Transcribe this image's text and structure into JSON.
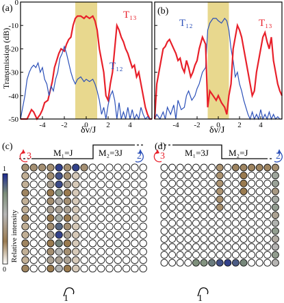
{
  "figure": {
    "panel_labels": [
      "(a)",
      "(b)",
      "(c)",
      "(d)"
    ],
    "colors": {
      "t13": "#e8202a",
      "t12": "#2a4fb8",
      "band": "#e8d88e",
      "grid_line": "#7f7f7f"
    },
    "colorbar": {
      "label": "Relative intensity",
      "max_label": "1",
      "min_label": "0",
      "colors": [
        "#ffffff",
        "#9a7b50",
        "#b7b7b7",
        "#7e8f7a",
        "#1c2a8f"
      ]
    },
    "lattice": {
      "c": {
        "left_port": "3",
        "right_port": "2",
        "bottom_port": "1",
        "m1": "M₁=J",
        "m2": "M₂=3J"
      },
      "d": {
        "left_port": "3",
        "right_port": "2",
        "bottom_port": "1",
        "m1": "M₁=3J",
        "m2": "M₂=J"
      }
    }
  },
  "chart_data": [
    {
      "type": "line",
      "panel": "(a)",
      "xlabel": "δν/J",
      "ylabel": "Transmission (dB)",
      "xlim": [
        -6,
        6
      ],
      "ylim": [
        -50,
        0
      ],
      "xticks": [
        "-4",
        "-2",
        "0",
        "2",
        "4"
      ],
      "yticks": [
        "0",
        "-10",
        "-20",
        "-30",
        "-40",
        "-50"
      ],
      "band": [
        -1,
        1
      ],
      "series": [
        {
          "name": "T₁₃",
          "color": "#e8202a",
          "x": [
            -6,
            -5.4,
            -5.2,
            -5,
            -4.8,
            -4.5,
            -4.2,
            -4,
            -3.8,
            -3.5,
            -3.3,
            -3.1,
            -2.9,
            -2.7,
            -2.5,
            -2.3,
            -2,
            -1.8,
            -1.6,
            -1.4,
            -1.2,
            -1,
            -0.8,
            -0.5,
            -0.2,
            0,
            0.3,
            0.6,
            0.8,
            1,
            1.2,
            1.4,
            1.6,
            1.8,
            2,
            2.2,
            2.4,
            2.6,
            2.8,
            3,
            3.2,
            3.4,
            3.6,
            3.8,
            4,
            4.2,
            4.4,
            4.6,
            4.8,
            5,
            5.2,
            5.4,
            5.6,
            5.8,
            6
          ],
          "y": [
            -50,
            -50,
            -48,
            -46,
            -47,
            -50,
            -48,
            -46,
            -43,
            -42,
            -38,
            -34,
            -28,
            -25,
            -22,
            -20,
            -21,
            -18,
            -16,
            -15,
            -10,
            -7,
            -6,
            -6,
            -7,
            -6,
            -7,
            -6,
            -8,
            -12,
            -20,
            -25,
            -30,
            -40,
            -42,
            -35,
            -30,
            -20,
            -10,
            -12,
            -15,
            -17,
            -20,
            -22,
            -25,
            -28,
            -27,
            -32,
            -30,
            -35,
            -40,
            -45,
            -48,
            -50,
            -50
          ]
        },
        {
          "name": "T₁₂",
          "color": "#2a4fb8",
          "x": [
            -6,
            -5.8,
            -5.6,
            -5.4,
            -5.2,
            -5,
            -4.8,
            -4.6,
            -4.4,
            -4.2,
            -4,
            -3.8,
            -3.6,
            -3.4,
            -3.2,
            -3,
            -2.8,
            -2.6,
            -2.4,
            -2.2,
            -2,
            -1.8,
            -1.6,
            -1.4,
            -1.2,
            -1,
            -0.8,
            -0.5,
            -0.2,
            0,
            0.3,
            0.6,
            0.8,
            1,
            1.2,
            1.4,
            1.6,
            1.8,
            2,
            2.2,
            2.4,
            2.6,
            2.8,
            3,
            3.2,
            3.4,
            3.6,
            3.8,
            4,
            4.2,
            4.4,
            4.6,
            4.8,
            5,
            5.2,
            5.4,
            5.6,
            5.8,
            6
          ],
          "y": [
            -50,
            -45,
            -40,
            -33,
            -30,
            -28,
            -27,
            -28,
            -26,
            -30,
            -28,
            -33,
            -35,
            -40,
            -36,
            -38,
            -33,
            -30,
            -24,
            -22,
            -19,
            -22,
            -26,
            -30,
            -33,
            -35,
            -33,
            -32,
            -34,
            -33,
            -34,
            -33,
            -35,
            -38,
            -42,
            -48,
            -45,
            -50,
            -44,
            -40,
            -38,
            -42,
            -50,
            -43,
            -50,
            -47,
            -50,
            -45,
            -50,
            -46,
            -50,
            -48,
            -50,
            -45,
            -48,
            -50,
            -49,
            -50,
            -50
          ]
        }
      ]
    },
    {
      "type": "line",
      "panel": "(b)",
      "xlabel": "δν/J",
      "xlim": [
        -6,
        6
      ],
      "ylim": [
        -50,
        0
      ],
      "xticks": [
        "-4",
        "-2",
        "0",
        "2",
        "4"
      ],
      "band": [
        -1,
        1
      ],
      "series": [
        {
          "name": "T₁₂",
          "color": "#2a4fb8",
          "x": [
            -6,
            -5.8,
            -5.5,
            -5.2,
            -5,
            -4.8,
            -4.5,
            -4.2,
            -4,
            -3.8,
            -3.5,
            -3.2,
            -3,
            -2.8,
            -2.5,
            -2.2,
            -2,
            -1.8,
            -1.5,
            -1.2,
            -1,
            -0.8,
            -0.5,
            -0.2,
            0,
            0.3,
            0.6,
            0.8,
            1,
            1.2,
            1.4,
            1.6,
            1.8,
            2,
            2.2,
            2.4,
            2.6,
            2.8,
            3,
            3.2,
            3.4,
            3.6,
            3.8,
            4,
            4.2,
            4.4,
            4.6,
            4.8,
            5,
            5.2,
            5.4,
            5.6,
            5.8,
            6
          ],
          "y": [
            -50,
            -48,
            -50,
            -47,
            -50,
            -45,
            -48,
            -44,
            -50,
            -42,
            -46,
            -45,
            -40,
            -38,
            -42,
            -40,
            -37,
            -35,
            -30,
            -28,
            -12,
            -9,
            -7,
            -7,
            -8,
            -9,
            -7,
            -8,
            -12,
            -20,
            -25,
            -32,
            -30,
            -35,
            -38,
            -42,
            -45,
            -48,
            -50,
            -47,
            -50,
            -48,
            -50,
            -46,
            -50,
            -48,
            -50,
            -47,
            -50,
            -48,
            -50,
            -49,
            -50,
            -50
          ]
        },
        {
          "name": "T₁₃",
          "color": "#e8202a",
          "x": [
            -6,
            -5.8,
            -5.6,
            -5.4,
            -5.2,
            -5,
            -4.8,
            -4.6,
            -4.4,
            -4.2,
            -4,
            -3.8,
            -3.6,
            -3.4,
            -3.2,
            -3,
            -2.8,
            -2.6,
            -2.4,
            -2.2,
            -2,
            -1.8,
            -1.5,
            -1.2,
            -1,
            -0.8,
            -0.5,
            -0.2,
            0,
            0.3,
            0.6,
            0.8,
            1,
            1.2,
            1.4,
            1.6,
            1.8,
            2,
            2.2,
            2.4,
            2.6,
            2.8,
            3,
            3.2,
            3.4,
            3.6,
            3.8,
            4,
            4.2,
            4.4,
            4.6,
            4.8,
            5,
            5.2,
            5.4,
            5.6,
            5.8,
            6
          ],
          "y": [
            -50,
            -35,
            -30,
            -25,
            -20,
            -19,
            -17,
            -16,
            -18,
            -20,
            -22,
            -25,
            -24,
            -28,
            -30,
            -25,
            -28,
            -32,
            -30,
            -27,
            -25,
            -20,
            -15,
            -18,
            -45,
            -38,
            -40,
            -42,
            -40,
            -43,
            -45,
            -48,
            -40,
            -35,
            -20,
            -15,
            -10,
            -12,
            -15,
            -20,
            -25,
            -30,
            -35,
            -40,
            -38,
            -30,
            -25,
            -20,
            -15,
            -13,
            -17,
            -20,
            -15,
            -25,
            -30,
            -35,
            -38,
            -40
          ]
        }
      ]
    },
    {
      "type": "heatmap",
      "panel": "(c)",
      "rows": 13,
      "cols": 16,
      "description": "Grid of resonators colored by relative intensity (0-1)."
    },
    {
      "type": "heatmap",
      "panel": "(d)",
      "rows": 13,
      "cols": 15,
      "description": "Grid of resonators colored by relative intensity (0-1)."
    }
  ]
}
